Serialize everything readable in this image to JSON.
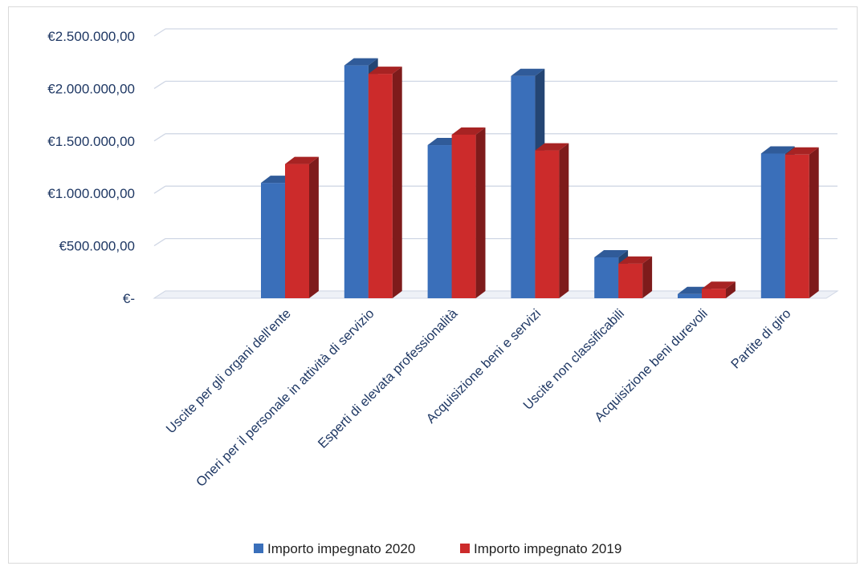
{
  "chart_data": {
    "type": "bar",
    "style": "3d-clustered-column",
    "categories": [
      "Uscite per gli organi dell'ente",
      "Oneri per il personale in attività di servizio",
      "Esperti di elevata professionalità",
      "Acquisizione beni e servizi",
      "Uscite non classificabili",
      "Acquisizione beni durevoli",
      "Partite di giro"
    ],
    "series": [
      {
        "name": "Importo impegnato 2020",
        "color": "#3a6fba",
        "values": [
          1100000,
          2220000,
          1460000,
          2120000,
          390000,
          40000,
          1380000
        ]
      },
      {
        "name": "Importo impegnato 2019",
        "color": "#cc2b2b",
        "values": [
          1280000,
          2140000,
          1560000,
          1410000,
          330000,
          90000,
          1370000
        ]
      }
    ],
    "ylim": [
      0,
      2500000
    ],
    "yticks": [
      0,
      500000,
      1000000,
      1500000,
      2000000,
      2500000
    ],
    "ytick_labels": [
      "€-",
      "€500.000,00",
      "€1.000.000,00",
      "€1.500.000,00",
      "€2.000.000,00",
      "€2.500.000,00"
    ],
    "grid": true,
    "legend_position": "bottom",
    "title": "",
    "xlabel": "",
    "ylabel": ""
  }
}
